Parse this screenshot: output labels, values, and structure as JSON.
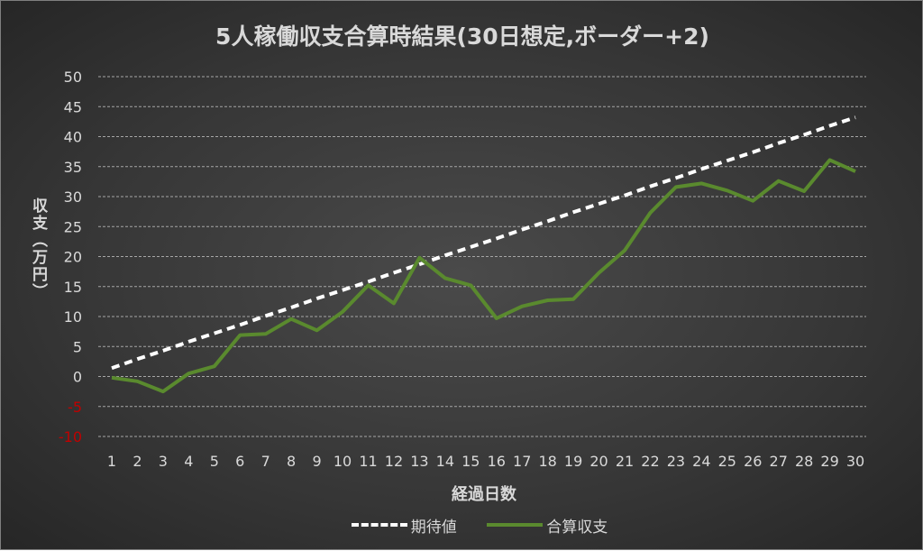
{
  "chart_data": {
    "type": "line",
    "title": "5人稼働収支合算時結果(30日想定,ボーダー+2)",
    "xlabel": "経過日数",
    "ylabel": "収支（万円）",
    "ylim": [
      -10,
      50
    ],
    "yticks": [
      50,
      45,
      40,
      35,
      30,
      25,
      20,
      15,
      10,
      5,
      0,
      -5,
      -10
    ],
    "negative_tick_color": "#c00000",
    "x": [
      1,
      2,
      3,
      4,
      5,
      6,
      7,
      8,
      9,
      10,
      11,
      12,
      13,
      14,
      15,
      16,
      17,
      18,
      19,
      20,
      21,
      22,
      23,
      24,
      25,
      26,
      27,
      28,
      29,
      30
    ],
    "grid": true,
    "legend_position": "bottom",
    "series": [
      {
        "name": "期待値",
        "style": "dashed",
        "color": "#ffffff",
        "values": [
          1.4,
          2.9,
          4.3,
          5.8,
          7.2,
          8.6,
          10.1,
          11.5,
          13.0,
          14.4,
          15.8,
          17.3,
          18.7,
          20.2,
          21.6,
          23.0,
          24.5,
          25.9,
          27.4,
          28.8,
          30.2,
          31.7,
          33.1,
          34.6,
          36.0,
          37.4,
          38.9,
          40.3,
          41.8,
          43.2
        ]
      },
      {
        "name": "合算収支",
        "style": "solid",
        "color": "#5a8a2e",
        "values": [
          -0.2,
          -0.8,
          -2.5,
          0.5,
          1.7,
          6.9,
          7.1,
          9.6,
          7.7,
          10.8,
          15.2,
          12.2,
          19.8,
          16.4,
          15.2,
          9.7,
          11.7,
          12.7,
          12.9,
          17.3,
          21.0,
          27.3,
          31.6,
          32.2,
          31.0,
          29.3,
          32.6,
          30.9,
          36.1,
          34.2
        ]
      }
    ]
  }
}
